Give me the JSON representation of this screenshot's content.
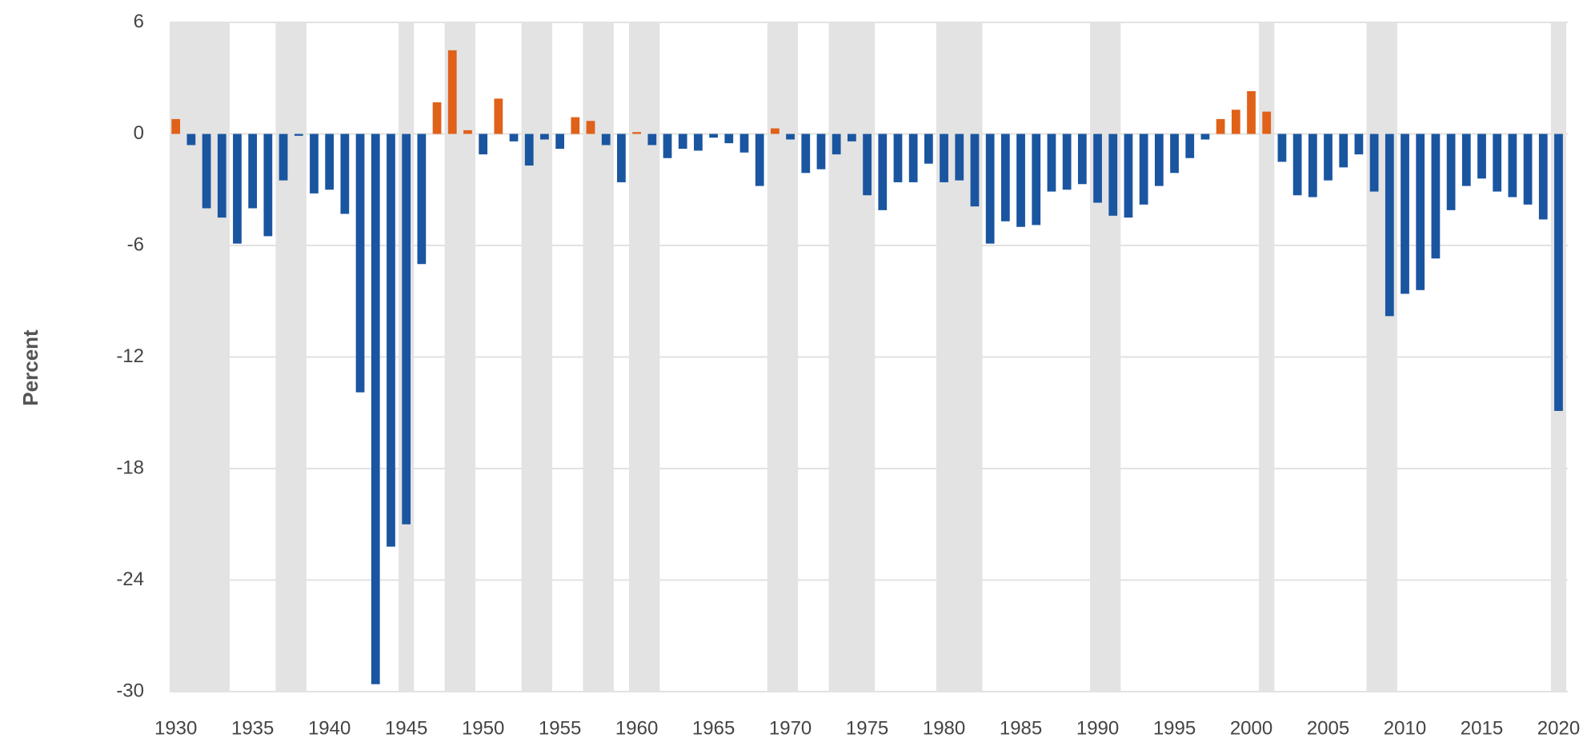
{
  "chart_data": {
    "type": "bar",
    "y_label": "Percent",
    "x": [
      1930,
      1931,
      1932,
      1933,
      1934,
      1935,
      1936,
      1937,
      1938,
      1939,
      1940,
      1941,
      1942,
      1943,
      1944,
      1945,
      1946,
      1947,
      1948,
      1949,
      1950,
      1951,
      1952,
      1953,
      1954,
      1955,
      1956,
      1957,
      1958,
      1959,
      1960,
      1961,
      1962,
      1963,
      1964,
      1965,
      1966,
      1967,
      1968,
      1969,
      1970,
      1971,
      1972,
      1973,
      1974,
      1975,
      1976,
      1977,
      1978,
      1979,
      1980,
      1981,
      1982,
      1983,
      1984,
      1985,
      1986,
      1987,
      1988,
      1989,
      1990,
      1991,
      1992,
      1993,
      1994,
      1995,
      1996,
      1997,
      1998,
      1999,
      2000,
      2001,
      2002,
      2003,
      2004,
      2005,
      2006,
      2007,
      2008,
      2009,
      2010,
      2011,
      2012,
      2013,
      2014,
      2015,
      2016,
      2017,
      2018,
      2019,
      2020
    ],
    "values": [
      0.8,
      -0.6,
      -4.0,
      -4.5,
      -5.9,
      -4.0,
      -5.5,
      -2.5,
      -0.1,
      -3.2,
      -3.0,
      -4.3,
      -13.9,
      -29.6,
      -22.2,
      -21.0,
      -7.0,
      1.7,
      4.5,
      0.2,
      -1.1,
      1.9,
      -0.4,
      -1.7,
      -0.3,
      -0.8,
      0.9,
      0.7,
      -0.6,
      -2.6,
      0.1,
      -0.6,
      -1.3,
      -0.8,
      -0.9,
      -0.2,
      -0.5,
      -1.0,
      -2.8,
      0.3,
      -0.3,
      -2.1,
      -1.9,
      -1.1,
      -0.4,
      -3.3,
      -4.1,
      -2.6,
      -2.6,
      -1.6,
      -2.6,
      -2.5,
      -3.9,
      -5.9,
      -4.7,
      -5.0,
      -4.9,
      -3.1,
      -3.0,
      -2.7,
      -3.7,
      -4.4,
      -4.5,
      -3.8,
      -2.8,
      -2.1,
      -1.3,
      -0.3,
      0.8,
      1.3,
      2.3,
      1.2,
      -1.5,
      -3.3,
      -3.4,
      -2.5,
      -1.8,
      -1.1,
      -3.1,
      -9.8,
      -8.6,
      -8.4,
      -6.7,
      -4.1,
      -2.8,
      -2.4,
      -3.1,
      -3.4,
      -3.8,
      -4.6,
      -14.9
    ],
    "positive_color": "#e0611a",
    "negative_color": "#1a55a0",
    "shaded_periods": [
      [
        1930,
        1933
      ],
      [
        1937,
        1938
      ],
      [
        1945,
        1945
      ],
      [
        1948,
        1949
      ],
      [
        1953,
        1954
      ],
      [
        1957,
        1958
      ],
      [
        1960,
        1961
      ],
      [
        1969,
        1970
      ],
      [
        1973,
        1975
      ],
      [
        1980,
        1982
      ],
      [
        1990,
        1991
      ],
      [
        2001,
        2001
      ],
      [
        2008,
        2009
      ],
      [
        2020,
        2020
      ]
    ],
    "shade_color": "#e3e3e3",
    "xlim": [
      1929.6,
      2020.6
    ],
    "xticks": [
      1930,
      1935,
      1940,
      1945,
      1950,
      1955,
      1960,
      1965,
      1970,
      1975,
      1980,
      1985,
      1990,
      1995,
      2000,
      2005,
      2010,
      2015,
      2020
    ],
    "ylim": [
      -30,
      6
    ],
    "yticks": [
      6,
      0,
      -6,
      -12,
      -18,
      -24,
      -30
    ],
    "grid": true
  }
}
